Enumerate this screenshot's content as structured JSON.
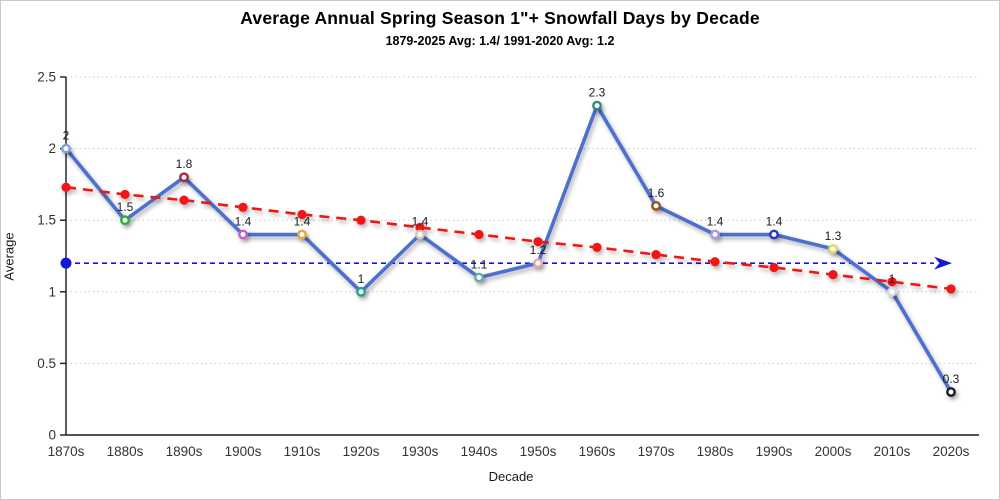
{
  "header": {
    "title": "Average Annual Spring Season 1\"+ Snowfall Days by Decade",
    "subtitle": "1879-2025 Avg: 1.4/ 1991-2020 Avg: 1.2"
  },
  "chart_data": {
    "type": "line",
    "title": "Average Annual Spring Season 1\"+ Snowfall Days by Decade",
    "subtitle": "1879-2025 Avg: 1.4/ 1991-2020 Avg: 1.2",
    "xlabel": "Decade",
    "ylabel": "Average",
    "ylim": [
      0,
      2.5
    ],
    "y_ticks": [
      0,
      0.5,
      1,
      1.5,
      2,
      2.5
    ],
    "grid": "horizontal-dotted",
    "legend": "none",
    "categories": [
      "1870s",
      "1880s",
      "1890s",
      "1900s",
      "1910s",
      "1920s",
      "1930s",
      "1940s",
      "1950s",
      "1960s",
      "1970s",
      "1980s",
      "1990s",
      "2000s",
      "2010s",
      "2020s"
    ],
    "series": [
      {
        "name": "snowfall-days-by-decade",
        "type": "line-markers",
        "line_color": "#4e6fd0",
        "values": [
          2,
          1.5,
          1.8,
          1.4,
          1.4,
          1,
          1.4,
          1.1,
          1.2,
          2.3,
          1.6,
          1.4,
          1.4,
          1.3,
          1,
          0.3
        ],
        "labels": [
          "2",
          "1.5",
          "1.8",
          "1.4",
          "1.4",
          "1",
          "1.4",
          "1.1",
          "1.2",
          "2.3",
          "1.6",
          "1.4",
          "1.4",
          "1.3",
          "1",
          "0.3"
        ],
        "marker_colors": [
          "#7b9fe0",
          "#2fae35",
          "#a8263d",
          "#c75bc7",
          "#e8a33d",
          "#1ba393",
          "#cfc9bd",
          "#6aa8b0",
          "#f2a0b4",
          "#2e8b7a",
          "#91521f",
          "#a79be0",
          "#2138c8",
          "#ddd967",
          "#d8d8de",
          "#1a1a1a"
        ]
      },
      {
        "name": "linear-trend",
        "type": "dashed-line-markers",
        "line_color": "#f01414",
        "values": [
          1.73,
          1.68,
          1.64,
          1.59,
          1.54,
          1.5,
          1.45,
          1.4,
          1.35,
          1.31,
          1.26,
          1.21,
          1.17,
          1.12,
          1.07,
          1.02
        ]
      },
      {
        "name": "reference-1991-2020-avg",
        "type": "reference-line-arrow",
        "line_color": "#1616d6",
        "value": 1.2
      }
    ],
    "colors": {
      "grid": "#c8c8c8",
      "axis": "#1a1a1a",
      "tick_label": "#333333",
      "data_label": "#1a1a1a"
    }
  }
}
